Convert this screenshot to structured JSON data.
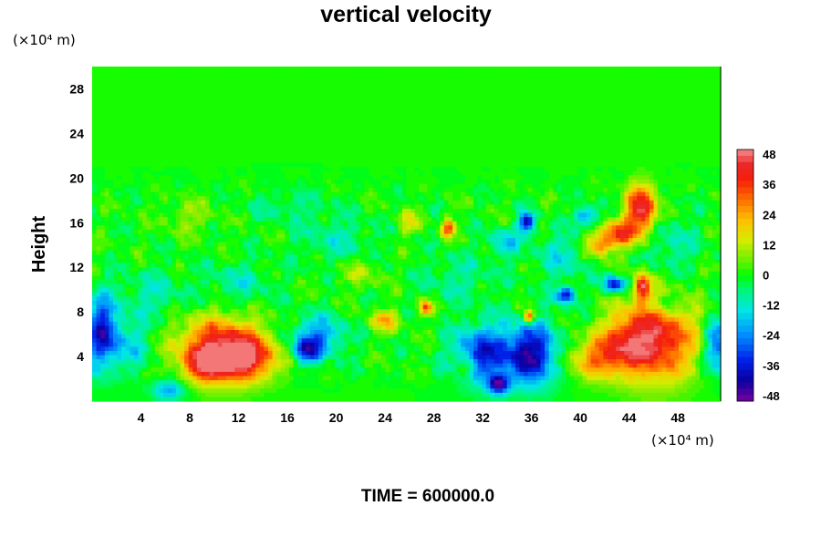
{
  "chart_data": {
    "type": "heatmap",
    "title": "vertical velocity",
    "ylabel": "Height",
    "x_unit_label": "(×10⁴ m)",
    "y_unit_label": "(×10⁴ m)",
    "time_label": "TIME = 600000.0",
    "x_ticks": [
      4,
      8,
      12,
      16,
      20,
      24,
      28,
      32,
      36,
      40,
      44,
      48
    ],
    "y_ticks": [
      4,
      8,
      12,
      16,
      20,
      24,
      28
    ],
    "xlim": [
      0,
      51.5
    ],
    "ylim": [
      0,
      30
    ],
    "colorbar": {
      "ticks": [
        48,
        36,
        24,
        12,
        0,
        -12,
        -24,
        -36,
        -48
      ],
      "range": [
        -50,
        50
      ],
      "levels": 40
    },
    "background_value": 0,
    "features": [
      {
        "x": 10.5,
        "y": 4.7,
        "rx": 3.2,
        "ry": 2.6,
        "value": 44
      },
      {
        "x": 13.0,
        "y": 3.8,
        "rx": 2.0,
        "ry": 1.8,
        "value": 30
      },
      {
        "x": 9.5,
        "y": 3.2,
        "rx": 1.6,
        "ry": 1.4,
        "value": 30
      },
      {
        "x": 46.2,
        "y": 5.5,
        "rx": 3.0,
        "ry": 3.5,
        "value": 44
      },
      {
        "x": 41.5,
        "y": 3.8,
        "rx": 2.4,
        "ry": 1.7,
        "value": 26
      },
      {
        "x": 43.5,
        "y": 5.5,
        "rx": 1.8,
        "ry": 2.0,
        "value": 18
      },
      {
        "x": 45.0,
        "y": 17.2,
        "rx": 1.2,
        "ry": 2.0,
        "value": 46
      },
      {
        "x": 43.2,
        "y": 15.0,
        "rx": 1.3,
        "ry": 1.1,
        "value": 36
      },
      {
        "x": 41.5,
        "y": 14.0,
        "rx": 1.0,
        "ry": 1.0,
        "value": 28
      },
      {
        "x": 45.1,
        "y": 10.2,
        "rx": 0.6,
        "ry": 1.2,
        "value": 40
      },
      {
        "x": 36.0,
        "y": 4.2,
        "rx": 2.0,
        "ry": 2.6,
        "value": -42
      },
      {
        "x": 32.0,
        "y": 4.2,
        "rx": 2.2,
        "ry": 2.4,
        "value": -34
      },
      {
        "x": 33.3,
        "y": 1.5,
        "rx": 0.8,
        "ry": 0.8,
        "value": -40
      },
      {
        "x": 0.8,
        "y": 6.2,
        "rx": 1.2,
        "ry": 3.0,
        "value": -36
      },
      {
        "x": 3.0,
        "y": 5.0,
        "rx": 1.7,
        "ry": 2.2,
        "value": -14
      },
      {
        "x": 18.5,
        "y": 5.8,
        "rx": 2.0,
        "ry": 1.7,
        "value": -24
      },
      {
        "x": 17.6,
        "y": 4.5,
        "rx": 1.0,
        "ry": 1.0,
        "value": -30
      },
      {
        "x": 38.8,
        "y": 9.5,
        "rx": 0.8,
        "ry": 0.7,
        "value": -36
      },
      {
        "x": 42.8,
        "y": 10.5,
        "rx": 0.9,
        "ry": 0.7,
        "value": -38
      },
      {
        "x": 35.6,
        "y": 16.0,
        "rx": 0.6,
        "ry": 0.9,
        "value": -40
      },
      {
        "x": 33.8,
        "y": 14.2,
        "rx": 1.2,
        "ry": 1.2,
        "value": -16
      },
      {
        "x": 40.5,
        "y": 16.6,
        "rx": 0.8,
        "ry": 0.8,
        "value": -26
      },
      {
        "x": 51.2,
        "y": 5.0,
        "rx": 0.9,
        "ry": 2.2,
        "value": -30
      },
      {
        "x": 6.3,
        "y": 1.0,
        "rx": 1.3,
        "ry": 0.9,
        "value": -22
      },
      {
        "x": 24.0,
        "y": 7.2,
        "rx": 1.1,
        "ry": 0.9,
        "value": 22
      },
      {
        "x": 27.3,
        "y": 8.4,
        "rx": 0.5,
        "ry": 0.6,
        "value": 36
      },
      {
        "x": 29.2,
        "y": 15.5,
        "rx": 0.5,
        "ry": 0.8,
        "value": 32
      },
      {
        "x": 26.0,
        "y": 16.0,
        "rx": 0.9,
        "ry": 1.0,
        "value": 14
      },
      {
        "x": 35.8,
        "y": 7.6,
        "rx": 0.4,
        "ry": 0.6,
        "value": 40
      },
      {
        "x": 30.5,
        "y": 3.0,
        "rx": 0.8,
        "ry": 1.0,
        "value": 14
      },
      {
        "x": 5.0,
        "y": 9.5,
        "rx": 2.5,
        "ry": 2.0,
        "value": -10
      },
      {
        "x": 12.0,
        "y": 10.5,
        "rx": 2.5,
        "ry": 1.8,
        "value": -10
      },
      {
        "x": 20.0,
        "y": 14.5,
        "rx": 3.0,
        "ry": 2.0,
        "value": -9
      },
      {
        "x": 30.0,
        "y": 11.0,
        "rx": 3.0,
        "ry": 2.0,
        "value": -8
      },
      {
        "x": 47.5,
        "y": 14.0,
        "rx": 2.0,
        "ry": 2.5,
        "value": -10
      },
      {
        "x": 38.5,
        "y": 13.0,
        "rx": 2.0,
        "ry": 2.0,
        "value": -12
      },
      {
        "x": 16.0,
        "y": 17.5,
        "rx": 3.0,
        "ry": 1.3,
        "value": -7
      },
      {
        "x": 8.0,
        "y": 16.5,
        "rx": 2.0,
        "ry": 1.5,
        "value": 8
      },
      {
        "x": 22.0,
        "y": 11.5,
        "rx": 1.8,
        "ry": 1.3,
        "value": 9
      },
      {
        "x": 47.0,
        "y": 8.8,
        "rx": 1.5,
        "ry": 1.0,
        "value": -12
      }
    ],
    "noise_amplitude": 5,
    "noise_band": [
      1,
      21
    ]
  }
}
